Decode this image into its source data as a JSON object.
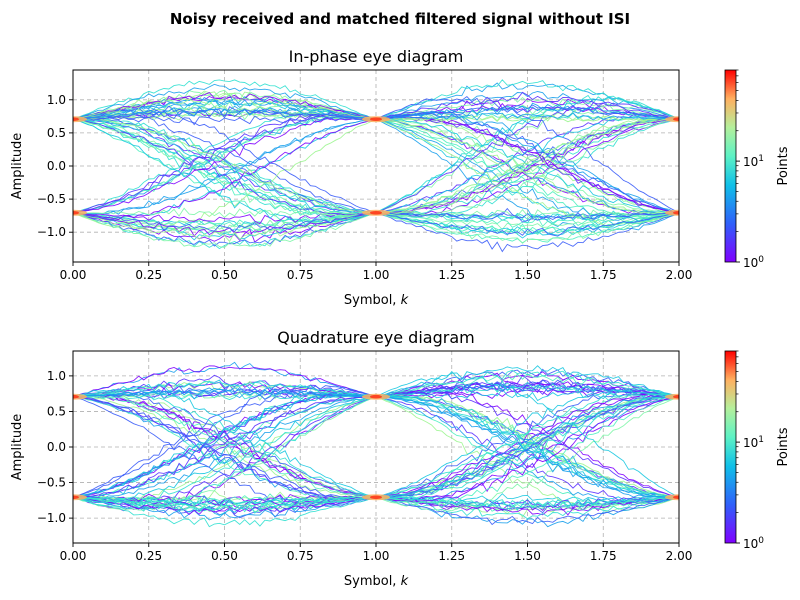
{
  "figure": {
    "suptitle": "Noisy received and matched filtered signal without ISI"
  },
  "chart_data": [
    {
      "type": "heatmap",
      "title": "In-phase eye diagram",
      "xlabel": "Symbol, k",
      "xlabel_prefix": "Symbol, ",
      "xlabel_var": "k",
      "ylabel": "Amplitude",
      "xlim": [
        0.0,
        2.0
      ],
      "ylim": [
        -1.45,
        1.45
      ],
      "xticks": [
        0.0,
        0.25,
        0.5,
        0.75,
        1.0,
        1.25,
        1.5,
        1.75,
        2.0
      ],
      "xtick_labels": [
        "0.00",
        "0.25",
        "0.50",
        "0.75",
        "1.00",
        "1.25",
        "1.50",
        "1.75",
        "2.00"
      ],
      "yticks": [
        1.0,
        0.5,
        0.0,
        -0.5,
        -1.0
      ],
      "ytick_labels": [
        "1.0",
        "0.5",
        "0.0",
        "−0.5",
        "−1.0"
      ],
      "grid": true,
      "symbol_levels": [
        0.707,
        -0.707
      ],
      "overshoot_peak": 1.3,
      "colorbar": {
        "label": "Points",
        "scale": "log",
        "min": 1,
        "max": 80,
        "ticks": [
          1,
          10
        ],
        "colormap": "rainbow"
      }
    },
    {
      "type": "heatmap",
      "title": "Quadrature eye diagram",
      "xlabel": "Symbol, k",
      "xlabel_prefix": "Symbol, ",
      "xlabel_var": "k",
      "ylabel": "Amplitude",
      "xlim": [
        0.0,
        2.0
      ],
      "ylim": [
        -1.35,
        1.35
      ],
      "xticks": [
        0.0,
        0.25,
        0.5,
        0.75,
        1.0,
        1.25,
        1.5,
        1.75,
        2.0
      ],
      "xtick_labels": [
        "0.00",
        "0.25",
        "0.50",
        "0.75",
        "1.00",
        "1.25",
        "1.50",
        "1.75",
        "2.00"
      ],
      "yticks": [
        1.0,
        0.5,
        0.0,
        -0.5,
        -1.0
      ],
      "ytick_labels": [
        "1.0",
        "0.5",
        "0.0",
        "−0.5",
        "−1.0"
      ],
      "grid": true,
      "symbol_levels": [
        0.707,
        -0.707
      ],
      "overshoot_peak": 1.25,
      "colorbar": {
        "label": "Points",
        "scale": "log",
        "min": 1,
        "max": 80,
        "ticks": [
          1,
          10
        ],
        "colormap": "rainbow"
      }
    }
  ]
}
